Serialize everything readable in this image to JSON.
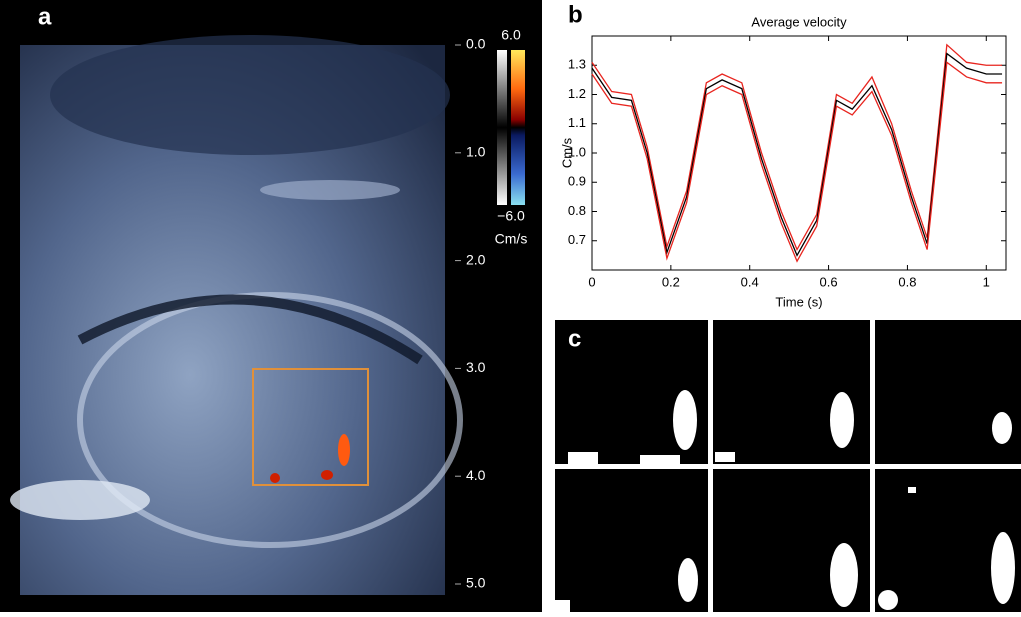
{
  "panels": {
    "a": {
      "label": "a",
      "depth_ticks": [
        {
          "value": 0,
          "label": "0.0"
        },
        {
          "value": 1,
          "label": "1.0"
        },
        {
          "value": 2,
          "label": "2.0"
        },
        {
          "value": 3,
          "label": "3.0"
        },
        {
          "value": 4,
          "label": "4.0"
        },
        {
          "value": 5,
          "label": "5.0"
        }
      ],
      "colorbar": {
        "max": {
          "value": 6,
          "label": "6.0"
        },
        "min": {
          "value": -6,
          "label": "−6.0"
        },
        "unit": "Cm/s"
      }
    },
    "c": {
      "label": "c"
    }
  },
  "chart_data": {
    "type": "line",
    "panel_label": "b",
    "title": "Average velocity",
    "x_label": "Time (s)",
    "y_label": "Cm/s",
    "x": [
      0,
      0.05,
      0.1,
      0.14,
      0.19,
      0.24,
      0.29,
      0.33,
      0.38,
      0.43,
      0.48,
      0.52,
      0.57,
      0.62,
      0.66,
      0.71,
      0.76,
      0.81,
      0.85,
      0.9,
      0.95,
      1.0,
      1.04
    ],
    "series": [
      {
        "color": "#e8251f",
        "values": [
          1.31,
          1.21,
          1.2,
          1.02,
          0.68,
          0.87,
          1.24,
          1.27,
          1.24,
          1.0,
          0.8,
          0.67,
          0.79,
          1.2,
          1.17,
          1.26,
          1.1,
          0.87,
          0.71,
          1.37,
          1.31,
          1.3,
          1.3
        ]
      },
      {
        "color": "#000000",
        "values": [
          1.29,
          1.19,
          1.18,
          1.0,
          0.66,
          0.85,
          1.22,
          1.25,
          1.22,
          0.98,
          0.78,
          0.65,
          0.77,
          1.18,
          1.15,
          1.23,
          1.08,
          0.85,
          0.69,
          1.34,
          1.29,
          1.27,
          1.27
        ]
      },
      {
        "color": "#e8251f",
        "values": [
          1.27,
          1.17,
          1.16,
          0.98,
          0.64,
          0.83,
          1.2,
          1.23,
          1.2,
          0.96,
          0.76,
          0.63,
          0.75,
          1.16,
          1.13,
          1.21,
          1.06,
          0.83,
          0.67,
          1.31,
          1.26,
          1.24,
          1.24
        ]
      }
    ],
    "xlim": [
      0,
      1.05
    ],
    "ylim": [
      0.6,
      1.4
    ],
    "xticks": [
      0,
      0.2,
      0.4,
      0.6,
      0.8,
      1
    ],
    "yticks": [
      0.7,
      0.8,
      0.9,
      {
        "value": 1,
        "label": "1.0"
      },
      1.1,
      1.2,
      1.3
    ]
  }
}
